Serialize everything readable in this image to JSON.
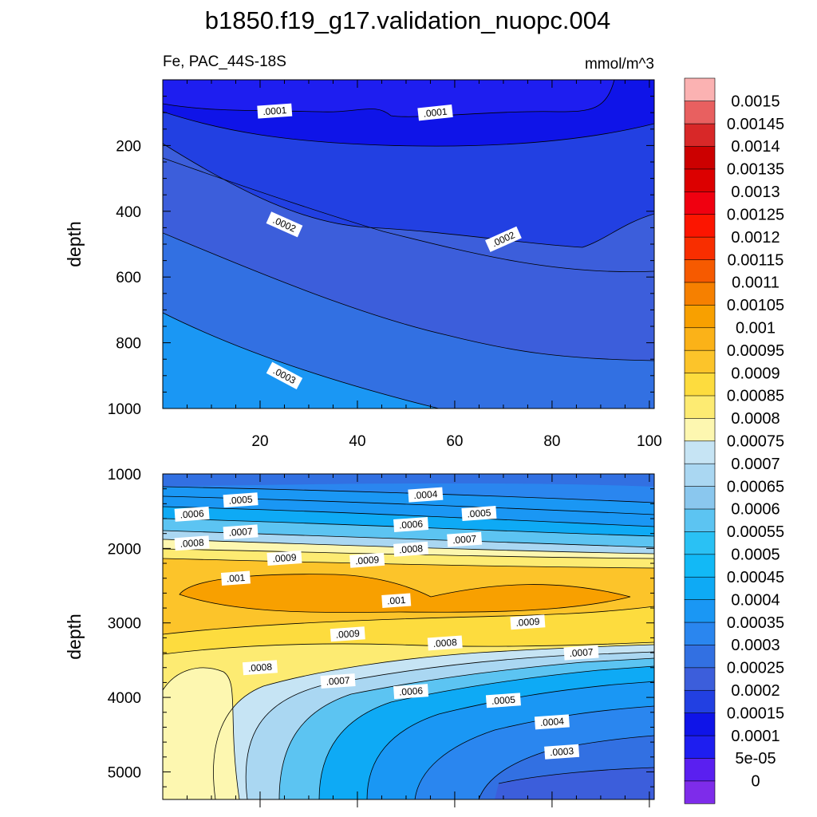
{
  "chart_data": {
    "type": "heatmap",
    "title": "b1850.f19_g17.validation_nuopc.004",
    "variable_label": "Fe, PAC_44S-18S",
    "units_label": "mmol/m^3",
    "colormap_levels": [
      "0",
      "5e-05",
      "0.0001",
      "0.00015",
      "0.0002",
      "0.00025",
      "0.0003",
      "0.00035",
      "0.0004",
      "0.00045",
      "0.0005",
      "0.00055",
      "0.0006",
      "0.00065",
      "0.0007",
      "0.00075",
      "0.0008",
      "0.00085",
      "0.0009",
      "0.00095",
      "0.001",
      "0.00105",
      "0.0011",
      "0.00115",
      "0.0012",
      "0.00125",
      "0.0013",
      "0.00135",
      "0.0014",
      "0.00145",
      "0.0015"
    ],
    "colormap_colors": [
      "#7e2cea",
      "#5a1ff0",
      "#1e1ef0",
      "#0f14e8",
      "#2240e2",
      "#3c5edb",
      "#3270e2",
      "#2a86ef",
      "#1a97f4",
      "#0eaaf5",
      "#12b9f6",
      "#2ac1f4",
      "#5cc4f2",
      "#8ac7ee",
      "#aad7f2",
      "#c6e4f4",
      "#fdf7b0",
      "#fdeb72",
      "#fddc3e",
      "#fcc42a",
      "#fbb218",
      "#f8a000",
      "#f68000",
      "#f65a00",
      "#f82e00",
      "#fc1500",
      "#f00010",
      "#dc0000",
      "#cc0000",
      "#d82828",
      "#e86060",
      "#fbb2b2"
    ],
    "panels": [
      {
        "name": "upper",
        "ylabel": "depth",
        "xlabel": "",
        "xlim": [
          0,
          101
        ],
        "ylim": [
          1000,
          0
        ],
        "xticks": [
          20,
          40,
          60,
          80,
          100
        ],
        "yticks": [
          200,
          400,
          600,
          800,
          1000
        ],
        "contour_labels": [
          {
            "text": ".0001",
            "x": 23,
            "y": 95
          },
          {
            "text": ".0001",
            "x": 56,
            "y": 100
          },
          {
            "text": ".0002",
            "x": 25,
            "y": 440
          },
          {
            "text": ".0002",
            "x": 70,
            "y": 485
          },
          {
            "text": ".0003",
            "x": 25,
            "y": 900
          }
        ]
      },
      {
        "name": "lower",
        "ylabel": "depth",
        "xlabel": "",
        "xlim": [
          0,
          101
        ],
        "ylim": [
          1000,
          5370
        ],
        "xticks": [
          20,
          40,
          60,
          80,
          100
        ],
        "yticks": [
          1000,
          2000,
          3000,
          4000,
          5000
        ],
        "contour_labels": [
          {
            "text": ".0004",
            "x": 54,
            "y": 1280
          },
          {
            "text": ".0005",
            "x": 16,
            "y": 1350
          },
          {
            "text": ".0005",
            "x": 65,
            "y": 1530
          },
          {
            "text": ".0006",
            "x": 6,
            "y": 1540
          },
          {
            "text": ".0006",
            "x": 51,
            "y": 1680
          },
          {
            "text": ".0007",
            "x": 16,
            "y": 1780
          },
          {
            "text": ".0007",
            "x": 62,
            "y": 1880
          },
          {
            "text": ".0008",
            "x": 6,
            "y": 1930
          },
          {
            "text": ".0008",
            "x": 51,
            "y": 2010
          },
          {
            "text": ".0009",
            "x": 25,
            "y": 2130
          },
          {
            "text": ".0009",
            "x": 42,
            "y": 2160
          },
          {
            "text": ".001",
            "x": 15,
            "y": 2400
          },
          {
            "text": ".001",
            "x": 48,
            "y": 2700
          },
          {
            "text": ".0009",
            "x": 75,
            "y": 2990
          },
          {
            "text": ".0009",
            "x": 38,
            "y": 3150
          },
          {
            "text": ".0008",
            "x": 58,
            "y": 3270
          },
          {
            "text": ".0007",
            "x": 86,
            "y": 3400
          },
          {
            "text": ".0008",
            "x": 20,
            "y": 3600
          },
          {
            "text": ".0007",
            "x": 36,
            "y": 3780
          },
          {
            "text": ".0006",
            "x": 51,
            "y": 3920
          },
          {
            "text": ".0005",
            "x": 70,
            "y": 4040
          },
          {
            "text": ".0004",
            "x": 80,
            "y": 4330
          },
          {
            "text": ".0003",
            "x": 82,
            "y": 4730
          }
        ]
      }
    ]
  }
}
